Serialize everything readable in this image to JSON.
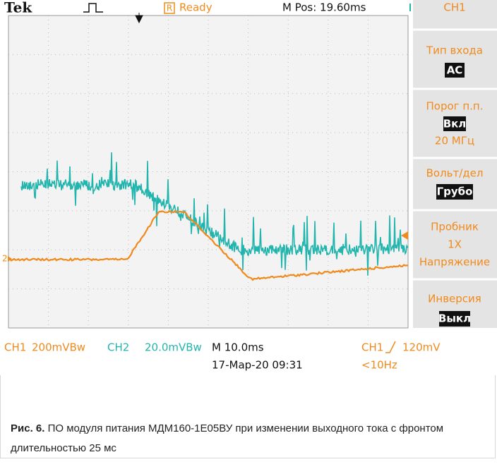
{
  "header": {
    "brand": "Tek",
    "status_icon": "R",
    "status": "Ready",
    "position": "M Pos: 19.60ms",
    "channel": "CH1"
  },
  "menu": [
    {
      "label": "Тип входа",
      "value": "AC"
    },
    {
      "label": "Порог п.п.",
      "value": "Вкл",
      "extra": "20 МГц"
    },
    {
      "label": "Вольт/дел",
      "value": "Грубо"
    },
    {
      "label": "Пробник",
      "value": "1X",
      "extra": "Напряжение"
    },
    {
      "label": "Инверсия",
      "value": "Выкл"
    }
  ],
  "marker": "2",
  "footer": {
    "ch1_label": "CH1",
    "ch1_scale": "200mVBw",
    "ch2_label": "CH2",
    "ch2_scale": "20.0mVBw",
    "timebase": "M 10.0ms",
    "date": "17-Мар-20 09:31",
    "trigger_source": "CH1",
    "trigger_level": "120mV",
    "frequency": "<10Hz"
  },
  "caption": {
    "figure": "Рис. 6.",
    "text": "ПО модуля питания МДМ160-1Е05ВУ при изменении выходного тока с фронтом длительностью 25 мс"
  }
}
